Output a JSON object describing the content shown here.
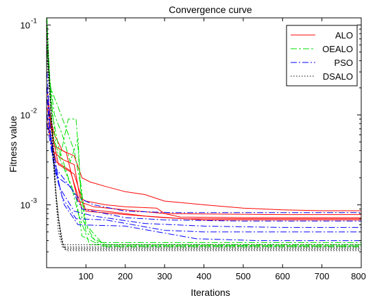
{
  "chart_data": {
    "type": "line",
    "title": "Convergence curve",
    "xlabel": "Iterations",
    "ylabel": "Fitness value",
    "xlim": [
      0,
      800
    ],
    "ylim": [
      0.0002,
      0.12
    ],
    "yscale": "log",
    "grid": false,
    "legend_position": "top-right",
    "xticks": [
      100,
      200,
      300,
      400,
      500,
      600,
      700,
      800
    ],
    "xtick_labels": [
      "100",
      "200",
      "300",
      "400",
      "500",
      "600",
      "700",
      "800"
    ],
    "yticks": [
      0.001,
      0.01,
      0.1
    ],
    "ytick_labels": [
      "10",
      "10",
      "10"
    ],
    "ytick_exponents": [
      "-3",
      "-2",
      "-1"
    ],
    "series": [
      {
        "name": "ALO",
        "color": "#ff0000",
        "dash": "solid",
        "runs": [
          [
            [
              1,
              0.02
            ],
            [
              10,
              0.009
            ],
            [
              20,
              0.006
            ],
            [
              40,
              0.004
            ],
            [
              70,
              0.0035
            ],
            [
              90,
              0.002
            ],
            [
              110,
              0.0018
            ],
            [
              150,
              0.0016
            ],
            [
              200,
              0.0014
            ],
            [
              250,
              0.0013
            ],
            [
              300,
              0.0011
            ],
            [
              400,
              0.001
            ],
            [
              500,
              0.00092
            ],
            [
              600,
              0.00088
            ],
            [
              700,
              0.00086
            ],
            [
              800,
              0.00086
            ]
          ],
          [
            [
              1,
              0.01
            ],
            [
              15,
              0.004
            ],
            [
              40,
              0.0032
            ],
            [
              70,
              0.0028
            ],
            [
              85,
              0.0012
            ],
            [
              100,
              0.0011
            ],
            [
              150,
              0.001
            ],
            [
              200,
              0.00095
            ],
            [
              280,
              0.00092
            ],
            [
              300,
              0.0008
            ],
            [
              400,
              0.00079
            ],
            [
              600,
              0.00078
            ],
            [
              800,
              0.00078
            ]
          ],
          [
            [
              1,
              0.015
            ],
            [
              20,
              0.0045
            ],
            [
              50,
              0.0038
            ],
            [
              80,
              0.0011
            ],
            [
              120,
              0.00095
            ],
            [
              200,
              0.00088
            ],
            [
              300,
              0.0008
            ],
            [
              340,
              0.00073
            ],
            [
              500,
              0.00072
            ],
            [
              800,
              0.00072
            ]
          ],
          [
            [
              1,
              0.008
            ],
            [
              25,
              0.003
            ],
            [
              60,
              0.0024
            ],
            [
              90,
              0.0009
            ],
            [
              150,
              0.00085
            ],
            [
              250,
              0.00075
            ],
            [
              350,
              0.0007
            ],
            [
              600,
              0.0007
            ],
            [
              800,
              0.0007
            ]
          ],
          [
            [
              1,
              0.012
            ],
            [
              30,
              0.0028
            ],
            [
              70,
              0.0022
            ],
            [
              100,
              0.00085
            ],
            [
              200,
              0.00078
            ],
            [
              300,
              0.00072
            ],
            [
              400,
              0.00068
            ],
            [
              800,
              0.00068
            ]
          ]
        ]
      },
      {
        "name": "OEALO",
        "color": "#00e000",
        "dash": "9 3 3 3",
        "runs": [
          [
            [
              1,
              0.12
            ],
            [
              6,
              0.03
            ],
            [
              12,
              0.008
            ],
            [
              20,
              0.005
            ],
            [
              35,
              0.0035
            ],
            [
              55,
              0.009
            ],
            [
              75,
              0.009
            ],
            [
              85,
              0.002
            ],
            [
              100,
              0.0006
            ],
            [
              140,
              0.00038
            ],
            [
              150,
              0.00034
            ],
            [
              800,
              0.00034
            ]
          ],
          [
            [
              1,
              0.1
            ],
            [
              8,
              0.025
            ],
            [
              20,
              0.01
            ],
            [
              40,
              0.006
            ],
            [
              60,
              0.003
            ],
            [
              80,
              0.0055
            ],
            [
              90,
              0.0007
            ],
            [
              120,
              0.00042
            ],
            [
              150,
              0.00036
            ],
            [
              800,
              0.00036
            ]
          ],
          [
            [
              1,
              0.08
            ],
            [
              10,
              0.02
            ],
            [
              30,
              0.012
            ],
            [
              50,
              0.007
            ],
            [
              70,
              0.004
            ],
            [
              85,
              0.0018
            ],
            [
              100,
              0.0005
            ],
            [
              130,
              0.00038
            ],
            [
              800,
              0.00038
            ]
          ],
          [
            [
              1,
              0.06
            ],
            [
              12,
              0.015
            ],
            [
              25,
              0.004
            ],
            [
              45,
              0.0025
            ],
            [
              65,
              0.0015
            ],
            [
              80,
              0.0008
            ],
            [
              110,
              0.00036
            ],
            [
              800,
              0.00035
            ]
          ],
          [
            [
              1,
              0.05
            ],
            [
              15,
              0.01
            ],
            [
              30,
              0.0045
            ],
            [
              55,
              0.002
            ],
            [
              75,
              0.0012
            ],
            [
              90,
              0.00045
            ],
            [
              140,
              0.00035
            ],
            [
              800,
              0.00035
            ]
          ]
        ]
      },
      {
        "name": "PSO",
        "color": "#0000ff",
        "dash": "9 3 2 3",
        "runs": [
          [
            [
              1,
              0.03
            ],
            [
              10,
              0.006
            ],
            [
              25,
              0.0025
            ],
            [
              50,
              0.0018
            ],
            [
              80,
              0.0012
            ],
            [
              120,
              0.001
            ],
            [
              200,
              0.00085
            ],
            [
              320,
              0.00082
            ],
            [
              800,
              0.00082
            ]
          ],
          [
            [
              1,
              0.02
            ],
            [
              12,
              0.005
            ],
            [
              30,
              0.002
            ],
            [
              60,
              0.0016
            ],
            [
              90,
              0.0009
            ],
            [
              200,
              0.00072
            ],
            [
              300,
              0.00068
            ],
            [
              500,
              0.00066
            ],
            [
              800,
              0.00066
            ]
          ],
          [
            [
              1,
              0.015
            ],
            [
              15,
              0.0035
            ],
            [
              35,
              0.0015
            ],
            [
              70,
              0.00085
            ],
            [
              120,
              0.00075
            ],
            [
              250,
              0.00062
            ],
            [
              400,
              0.00058
            ],
            [
              600,
              0.00056
            ],
            [
              800,
              0.00056
            ]
          ],
          [
            [
              1,
              0.01
            ],
            [
              18,
              0.003
            ],
            [
              40,
              0.0012
            ],
            [
              75,
              0.0007
            ],
            [
              150,
              0.00068
            ],
            [
              300,
              0.00052
            ],
            [
              400,
              0.0005
            ],
            [
              800,
              0.0005
            ]
          ],
          [
            [
              1,
              0.008
            ],
            [
              20,
              0.0025
            ],
            [
              45,
              0.001
            ],
            [
              80,
              0.0006
            ],
            [
              200,
              0.00058
            ],
            [
              380,
              0.00042
            ],
            [
              540,
              0.0004
            ],
            [
              800,
              0.0004
            ]
          ]
        ]
      },
      {
        "name": "DSALO",
        "color": "#000000",
        "dash": "1.5 2.5",
        "runs": [
          [
            [
              1,
              0.1
            ],
            [
              8,
              0.02
            ],
            [
              15,
              0.004
            ],
            [
              22,
              0.0015
            ],
            [
              30,
              0.0005
            ],
            [
              40,
              0.00034
            ],
            [
              800,
              0.00034
            ]
          ],
          [
            [
              1,
              0.08
            ],
            [
              10,
              0.015
            ],
            [
              18,
              0.003
            ],
            [
              25,
              0.0012
            ],
            [
              35,
              0.00045
            ],
            [
              45,
              0.00032
            ],
            [
              800,
              0.00032
            ]
          ],
          [
            [
              1,
              0.06
            ],
            [
              12,
              0.01
            ],
            [
              20,
              0.002
            ],
            [
              28,
              0.0009
            ],
            [
              38,
              0.0004
            ],
            [
              50,
              0.00031
            ],
            [
              800,
              0.00031
            ]
          ],
          [
            [
              1,
              0.05
            ],
            [
              14,
              0.008
            ],
            [
              22,
              0.0016
            ],
            [
              30,
              0.0007
            ],
            [
              42,
              0.00036
            ],
            [
              800,
              0.00036
            ]
          ],
          [
            [
              1,
              0.04
            ],
            [
              16,
              0.006
            ],
            [
              24,
              0.0012
            ],
            [
              32,
              0.0006
            ],
            [
              44,
              0.00033
            ],
            [
              800,
              0.00033
            ]
          ]
        ]
      }
    ]
  }
}
